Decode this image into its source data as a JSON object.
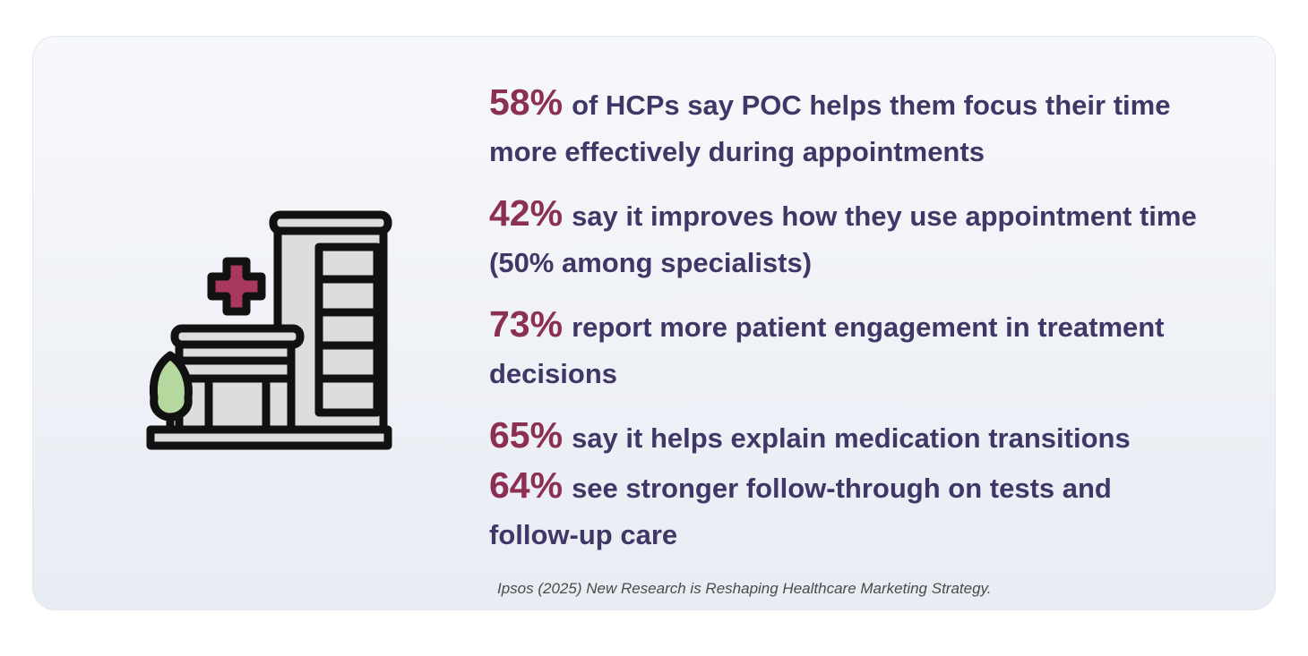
{
  "stats": [
    {
      "percent": "58%",
      "text": "of HCPs say POC helps them focus their time more effectively during appointments"
    },
    {
      "percent": "42%",
      "text": "say it improves how they use appointment time (50% among specialists)"
    },
    {
      "percent": "73%",
      "text": "report more patient engagement in treatment decisions"
    },
    {
      "percent": "65%",
      "text": "say it helps explain medication transitions"
    },
    {
      "percent": "64%",
      "text": "see stronger follow-through on tests and follow-up care"
    }
  ],
  "citation": "Ipsos (2025) New Research is Reshaping Healthcare Marketing Strategy."
}
